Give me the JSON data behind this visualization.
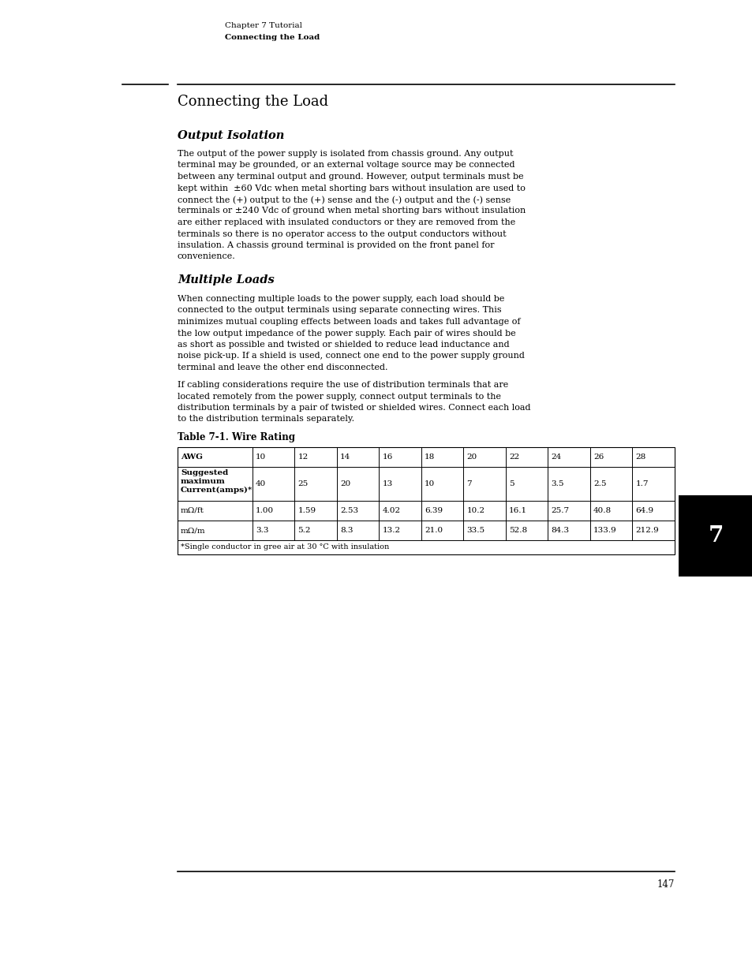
{
  "bg_color": "#ffffff",
  "page_width": 9.54,
  "page_height": 12.35,
  "header_line1": "Chapter 7 Tutorial",
  "header_line2": "Connecting the Load",
  "section_title": "Connecting the Load",
  "subsection1_title": "Output Isolation",
  "para1_text": "The output of the power supply is isolated from chassis ground. Any output\nterminal may be grounded, or an external voltage source may be connected\nbetween any terminal output and ground. However, output terminals must be\nkept within  ±60 Vdc when metal shorting bars without insulation are used to\nconnect the (+) output to the (+) sense and the (-) output and the (-) sense\nterminals or ±240 Vdc of ground when metal shorting bars without insulation\nare either replaced with insulated conductors or they are removed from the\nterminals so there is no operator access to the output conductors without\ninsulation. A chassis ground terminal is provided on the front panel for\nconvenience.",
  "subsection2_title": "Multiple Loads",
  "para2_text": "When connecting multiple loads to the power supply, each load should be\nconnected to the output terminals using separate connecting wires. This\nminimizes mutual coupling effects between loads and takes full advantage of\nthe low output impedance of the power supply. Each pair of wires should be\nas short as possible and twisted or shielded to reduce lead inductance and\nnoise pick-up. If a shield is used, connect one end to the power supply ground\nterminal and leave the other end disconnected.",
  "para3_text": "If cabling considerations require the use of distribution terminals that are\nlocated remotely from the power supply, connect output terminals to the\ndistribution terminals by a pair of twisted or shielded wires. Connect each load\nto the distribution terminals separately.",
  "table_title": "Table 7-1. Wire Rating",
  "table_col_labels": [
    "AWG",
    "10",
    "12",
    "14",
    "16",
    "18",
    "20",
    "22",
    "24",
    "26",
    "28"
  ],
  "table_row2_label": "Suggested\nmaximum\nCurrent(amps)*",
  "table_row2_values": [
    "40",
    "25",
    "20",
    "13",
    "10",
    "7",
    "5",
    "3.5",
    "2.5",
    "1.7"
  ],
  "table_row3_label": "mΩ/ft",
  "table_row3_values": [
    "1.00",
    "1.59",
    "2.53",
    "4.02",
    "6.39",
    "10.2",
    "16.1",
    "25.7",
    "40.8",
    "64.9"
  ],
  "table_row4_label": "mΩ/m",
  "table_row4_values": [
    "3.3",
    "5.2",
    "8.3",
    "13.2",
    "21.0",
    "33.5",
    "52.8",
    "84.3",
    "133.9",
    "212.9"
  ],
  "table_footnote": "*Single conductor in gree air at 30 °C with insulation",
  "footer_page_num": "147",
  "tab_number": "7"
}
